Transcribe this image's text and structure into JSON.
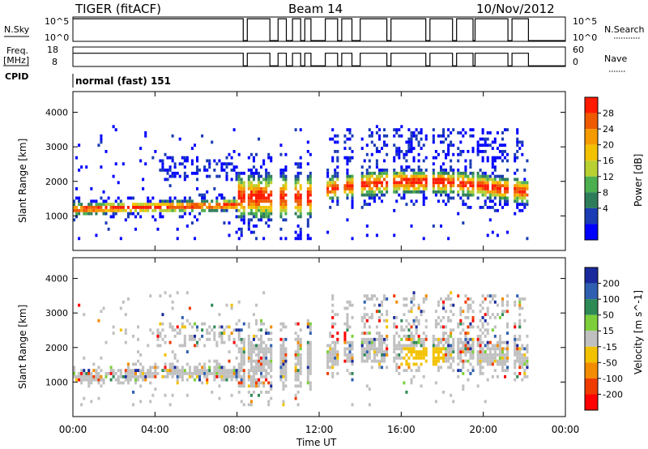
{
  "header": {
    "title": "TIGER (fitACF)",
    "beam": "Beam 14",
    "date": "10/Nov/2012"
  },
  "status_panels": {
    "nsky_label": "N.Sky",
    "freq_label_1": "Freq.",
    "freq_label_2": "[MHz]",
    "cpid_label": "CPID",
    "nsearch_label": "N.Search",
    "nave_label": "Nave",
    "nsky_tick_top": "10^5",
    "nsky_tick_bottom": "10^0",
    "freq_tick_top": "18",
    "freq_tick_bottom": "8",
    "nave_tick_top": "60",
    "nave_tick_bottom": "0",
    "cpid_text": "normal (fast) 151"
  },
  "chart_data": [
    {
      "type": "heatmap",
      "name": "Power panel",
      "xlabel": "",
      "ylabel": "Slant Range [km]",
      "xlim": [
        0,
        24
      ],
      "ylim": [
        0,
        4600
      ],
      "yticks": [
        "1000",
        "2000",
        "3000",
        "4000"
      ],
      "colorbar": {
        "label": "Power [dB]",
        "ticks": [
          "4",
          "8",
          "12",
          "16",
          "20",
          "24",
          "28"
        ],
        "colors": [
          "#0000ff",
          "#1a3cb4",
          "#2e7d5a",
          "#4caf50",
          "#b8d032",
          "#f2c200",
          "#f59a00",
          "#ef5a00",
          "#ff1a00"
        ]
      },
      "echo_bands": [
        {
          "t0": 0.0,
          "t1": 8.2,
          "r0": 1000,
          "r1": 1300,
          "level": "strong"
        },
        {
          "t0": 8.2,
          "t1": 12.2,
          "r0": 1000,
          "r1": 2600,
          "level": "strong"
        },
        {
          "t0": 12.2,
          "t1": 22.2,
          "r0": 1300,
          "r1": 2200,
          "level": "strong"
        },
        {
          "t0": 12.5,
          "t1": 22.0,
          "r0": 2400,
          "r1": 3500,
          "level": "weak"
        }
      ]
    },
    {
      "type": "heatmap",
      "name": "Velocity panel",
      "xlabel": "Time UT",
      "ylabel": "Slant Range [km]",
      "xlim": [
        0,
        24
      ],
      "ylim": [
        0,
        4600
      ],
      "xticks": [
        "00:00",
        "04:00",
        "08:00",
        "12:00",
        "16:00",
        "20:00",
        "00:00"
      ],
      "yticks": [
        "1000",
        "2000",
        "3000",
        "4000"
      ],
      "colorbar": {
        "label": "Velocity [m s^-1]",
        "ticks": [
          "200",
          "100",
          "50",
          "15",
          "-15",
          "-50",
          "-100",
          "-200"
        ],
        "colors": [
          "#1a2a9c",
          "#2e5fb0",
          "#2e8a55",
          "#7ccf3a",
          "#c0c0c0",
          "#f2c200",
          "#f28c00",
          "#ef3b00",
          "#ff0000"
        ]
      }
    }
  ]
}
